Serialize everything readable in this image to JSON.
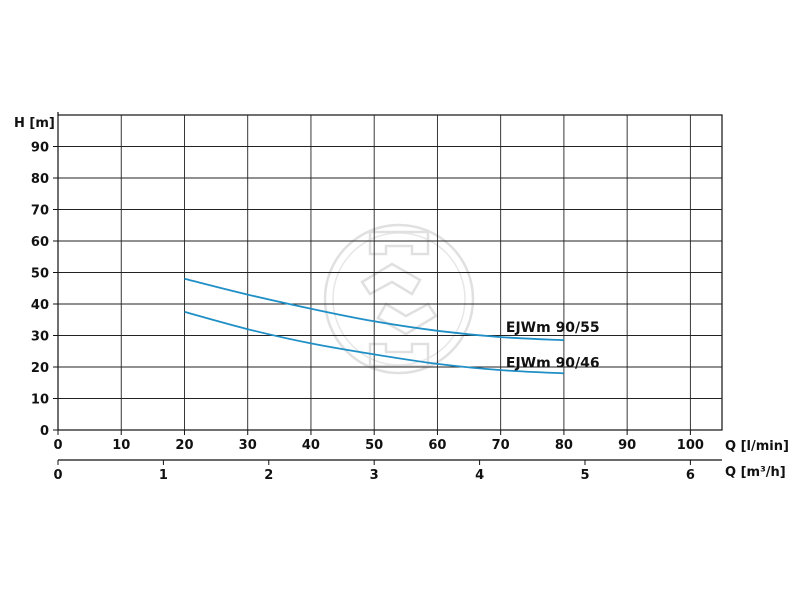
{
  "chart_data": {
    "type": "line",
    "ylabel": "H [m]",
    "xlabel": "Q [l/min]",
    "xlabel_secondary": "Q [m³/h]",
    "xlim": [
      0,
      105
    ],
    "ylim": [
      0,
      100
    ],
    "x_ticks": [
      0,
      10,
      20,
      30,
      40,
      50,
      60,
      70,
      80,
      90,
      100
    ],
    "y_ticks": [
      0,
      10,
      20,
      30,
      40,
      50,
      60,
      70,
      80,
      90
    ],
    "x2_ticks": [
      0,
      1,
      2,
      3,
      4,
      5,
      6
    ],
    "grid": true,
    "line_color": "#1f8fc6",
    "series": [
      {
        "name": "EJWm 90/55",
        "x": [
          20,
          30,
          40,
          50,
          60,
          70,
          80
        ],
        "y": [
          48,
          43,
          38.5,
          34.5,
          31.5,
          29.5,
          28.5
        ]
      },
      {
        "name": "EJWm 90/46",
        "x": [
          20,
          30,
          40,
          50,
          60,
          70,
          80
        ],
        "y": [
          37.5,
          32,
          27.5,
          24,
          21,
          19,
          18
        ]
      }
    ]
  }
}
